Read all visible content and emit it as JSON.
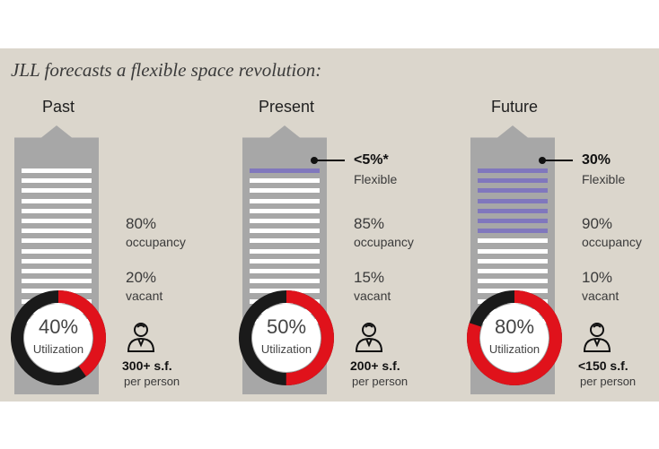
{
  "title": "JLL forecasts a flexible space revolution:",
  "colors": {
    "background": "#dbd6cc",
    "building": "#a7a7a7",
    "floor": "#ffffff",
    "flexible_floor": "#8077bd",
    "utilized": "#e0121b",
    "unutilized": "#1a1a1a"
  },
  "icons": {
    "person": "person-icon"
  },
  "chart_data": [
    {
      "type": "pie",
      "title": "Past",
      "utilization_percent": 40,
      "utilization_text": "40%",
      "utilization_label": "Utilization",
      "flexible_floors": 0,
      "total_floors": 16,
      "occupancy": "80%",
      "occupancy_label": "occupancy",
      "vacant": "20%",
      "vacant_label": "vacant",
      "space": "300+ s.f.",
      "space_label": "per person"
    },
    {
      "type": "pie",
      "title": "Present",
      "utilization_percent": 50,
      "utilization_text": "50%",
      "utilization_label": "Utilization",
      "flexible": "<5%*",
      "flexible_label": "Flexible",
      "flexible_floors": 1,
      "total_floors": 16,
      "occupancy": "85%",
      "occupancy_label": "occupancy",
      "vacant": "15%",
      "vacant_label": "vacant",
      "space": "200+ s.f.",
      "space_label": "per person"
    },
    {
      "type": "pie",
      "title": "Future",
      "utilization_percent": 80,
      "utilization_text": "80%",
      "utilization_label": "Utilization",
      "flexible": "30%",
      "flexible_label": "Flexible",
      "flexible_floors": 7,
      "total_floors": 16,
      "occupancy": "90%",
      "occupancy_label": "occupancy",
      "vacant": "10%",
      "vacant_label": "vacant",
      "space": "<150 s.f.",
      "space_label": "per person"
    }
  ]
}
